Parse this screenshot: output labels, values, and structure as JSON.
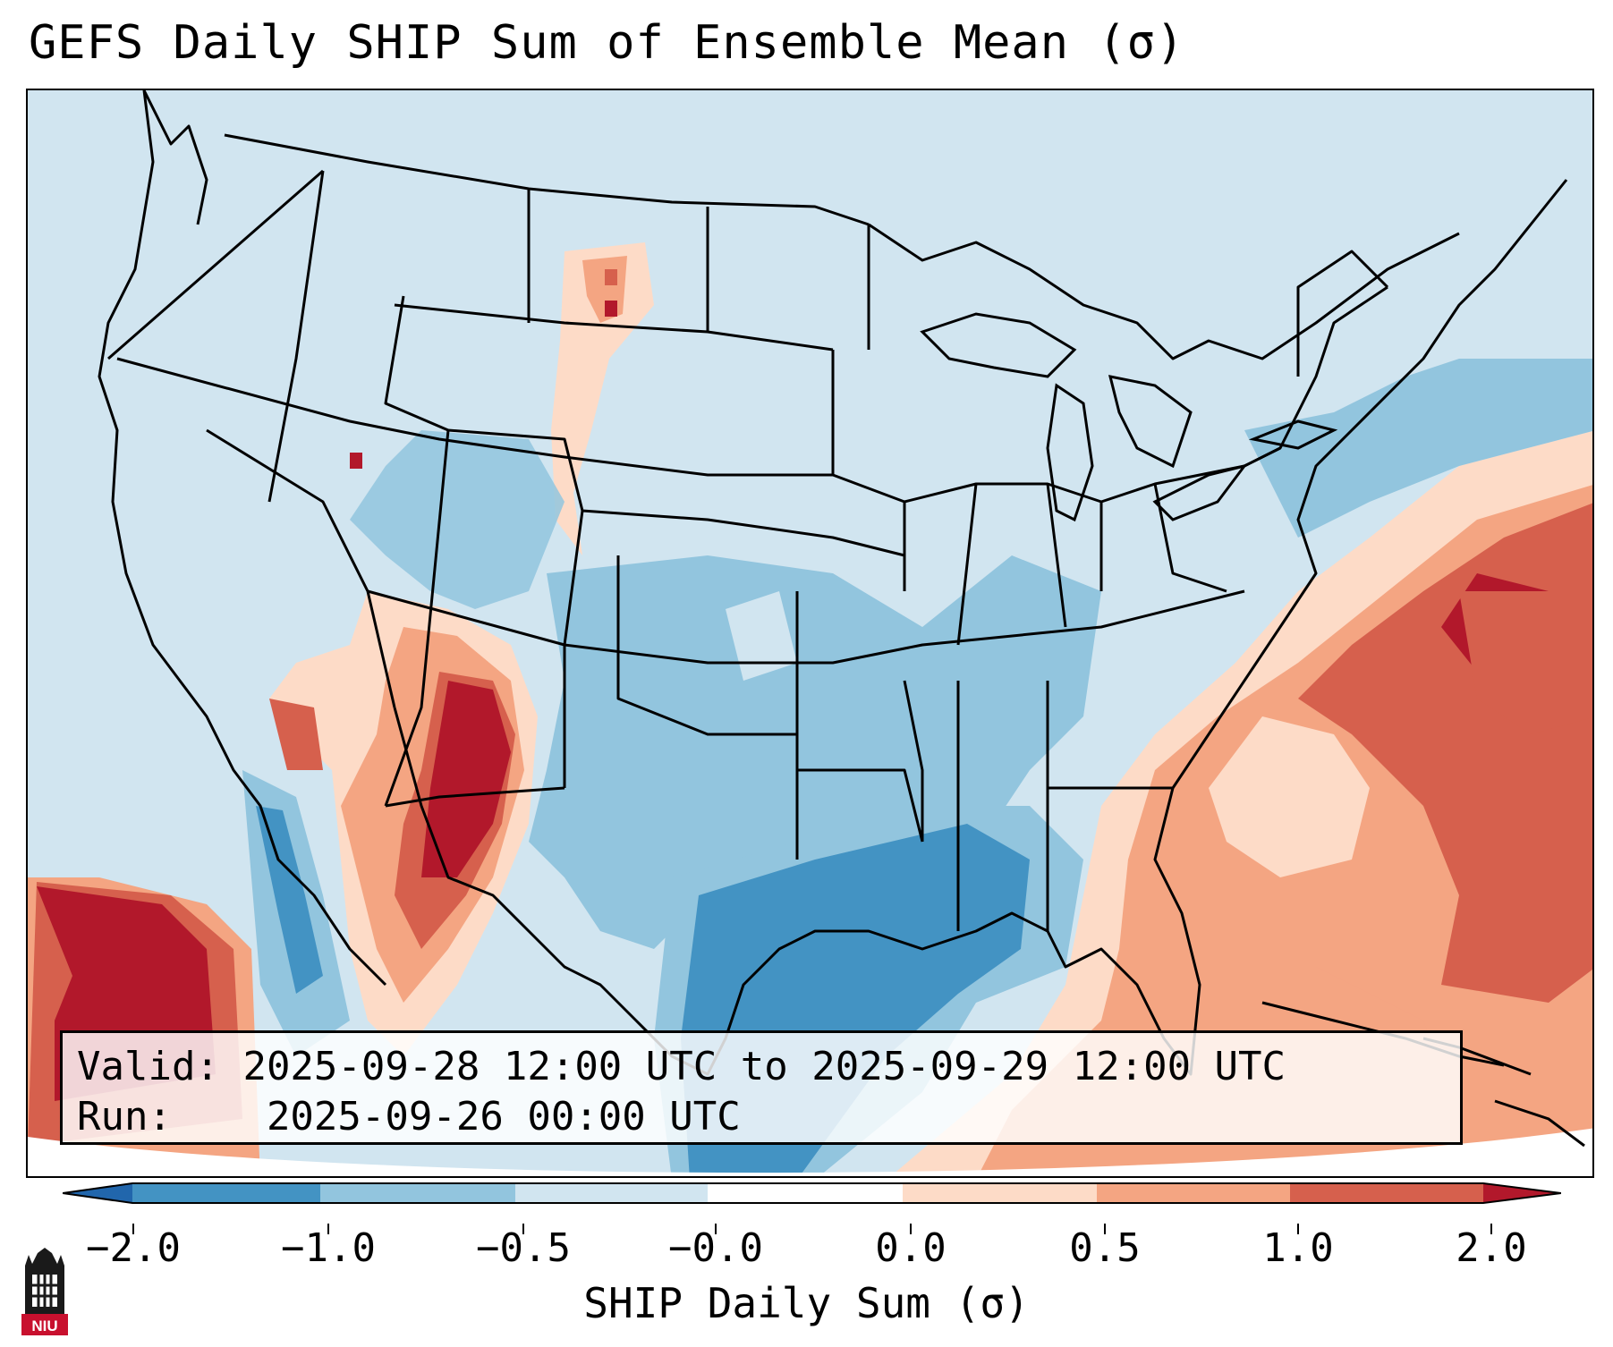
{
  "title": "GEFS Daily SHIP Sum of Ensemble Mean (σ)",
  "info": {
    "valid_label": "Valid:",
    "valid_value": "2025-09-28 12:00 UTC to 2025-09-29 12:00 UTC",
    "run_label": "Run:",
    "run_value": "2025-09-26 00:00 UTC"
  },
  "colorbar": {
    "label": "SHIP Daily Sum (σ)",
    "ticks": [
      "−2.0",
      "−1.0",
      "−0.5",
      "−0.0",
      "0.0",
      "0.5",
      "1.0",
      "2.0"
    ],
    "colors": [
      "#4393c3",
      "#92c5de",
      "#d1e5f0",
      "#ffffff",
      "#fddbc7",
      "#f4a582",
      "#d6604d",
      "#b2182b"
    ],
    "under_color": "#2166ac",
    "over_color": "#b2182b"
  },
  "logo_text": "NIU"
}
